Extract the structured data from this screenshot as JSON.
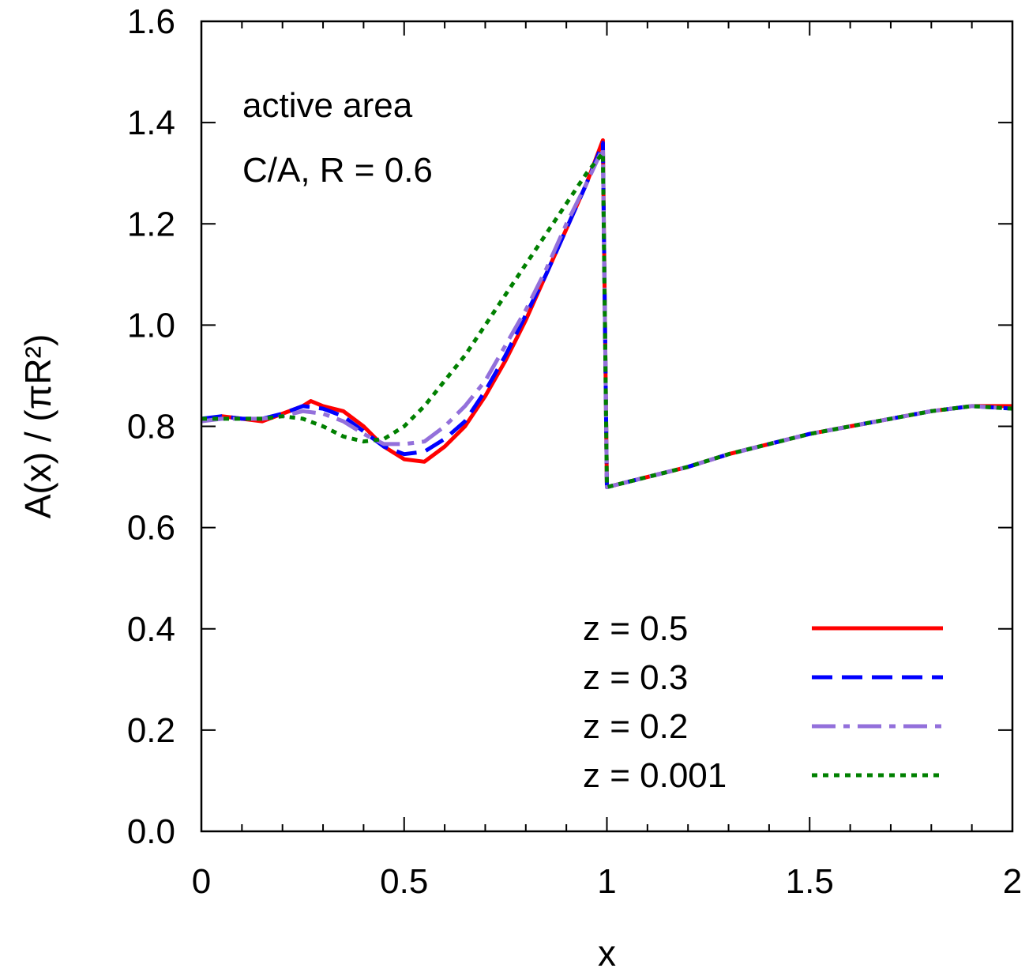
{
  "chart_data": {
    "type": "line",
    "title": "",
    "xlabel": "x",
    "ylabel": "A(x) / (πR²)",
    "xlim": [
      0,
      2
    ],
    "ylim": [
      0.0,
      1.6
    ],
    "x_ticks": [
      "0",
      "0.5",
      "1",
      "1.5",
      "2"
    ],
    "y_ticks": [
      "0.0",
      "0.2",
      "0.4",
      "0.6",
      "0.8",
      "1.0",
      "1.2",
      "1.4",
      "1.6"
    ],
    "grid": false,
    "legend_position": "bottom-right",
    "annotations": [
      "active area",
      "C/A, R = 0.6"
    ],
    "series": [
      {
        "name": "z = 0.5",
        "color": "#ff0000",
        "dash": "solid",
        "points": [
          [
            0,
            0.81
          ],
          [
            0.05,
            0.82
          ],
          [
            0.1,
            0.815
          ],
          [
            0.15,
            0.81
          ],
          [
            0.2,
            0.825
          ],
          [
            0.25,
            0.84
          ],
          [
            0.27,
            0.85
          ],
          [
            0.3,
            0.84
          ],
          [
            0.35,
            0.83
          ],
          [
            0.4,
            0.8
          ],
          [
            0.45,
            0.76
          ],
          [
            0.5,
            0.735
          ],
          [
            0.55,
            0.73
          ],
          [
            0.6,
            0.76
          ],
          [
            0.65,
            0.8
          ],
          [
            0.7,
            0.86
          ],
          [
            0.75,
            0.93
          ],
          [
            0.8,
            1.01
          ],
          [
            0.85,
            1.1
          ],
          [
            0.9,
            1.19
          ],
          [
            0.95,
            1.28
          ],
          [
            0.99,
            1.365
          ],
          [
            1.0,
            0.68
          ],
          [
            1.1,
            0.7
          ],
          [
            1.2,
            0.72
          ],
          [
            1.3,
            0.745
          ],
          [
            1.4,
            0.765
          ],
          [
            1.5,
            0.785
          ],
          [
            1.6,
            0.8
          ],
          [
            1.7,
            0.815
          ],
          [
            1.8,
            0.83
          ],
          [
            1.9,
            0.84
          ],
          [
            2.0,
            0.84
          ]
        ]
      },
      {
        "name": "z = 0.3",
        "color": "#0000ff",
        "dash": "dashed",
        "points": [
          [
            0,
            0.815
          ],
          [
            0.05,
            0.82
          ],
          [
            0.1,
            0.815
          ],
          [
            0.15,
            0.815
          ],
          [
            0.2,
            0.825
          ],
          [
            0.25,
            0.84
          ],
          [
            0.3,
            0.835
          ],
          [
            0.35,
            0.82
          ],
          [
            0.4,
            0.79
          ],
          [
            0.45,
            0.76
          ],
          [
            0.5,
            0.745
          ],
          [
            0.55,
            0.75
          ],
          [
            0.6,
            0.775
          ],
          [
            0.65,
            0.81
          ],
          [
            0.7,
            0.87
          ],
          [
            0.75,
            0.94
          ],
          [
            0.8,
            1.02
          ],
          [
            0.85,
            1.1
          ],
          [
            0.9,
            1.19
          ],
          [
            0.95,
            1.28
          ],
          [
            0.99,
            1.36
          ],
          [
            1.0,
            0.68
          ],
          [
            1.1,
            0.7
          ],
          [
            1.2,
            0.72
          ],
          [
            1.3,
            0.745
          ],
          [
            1.4,
            0.765
          ],
          [
            1.5,
            0.785
          ],
          [
            1.6,
            0.8
          ],
          [
            1.7,
            0.815
          ],
          [
            1.8,
            0.83
          ],
          [
            1.9,
            0.84
          ],
          [
            2.0,
            0.835
          ]
        ]
      },
      {
        "name": "z = 0.2",
        "color": "#9370db",
        "dash": "dashdot",
        "points": [
          [
            0,
            0.81
          ],
          [
            0.05,
            0.815
          ],
          [
            0.1,
            0.815
          ],
          [
            0.15,
            0.815
          ],
          [
            0.2,
            0.82
          ],
          [
            0.25,
            0.83
          ],
          [
            0.3,
            0.825
          ],
          [
            0.35,
            0.81
          ],
          [
            0.4,
            0.785
          ],
          [
            0.45,
            0.765
          ],
          [
            0.5,
            0.765
          ],
          [
            0.55,
            0.77
          ],
          [
            0.6,
            0.8
          ],
          [
            0.65,
            0.84
          ],
          [
            0.7,
            0.89
          ],
          [
            0.75,
            0.96
          ],
          [
            0.8,
            1.03
          ],
          [
            0.85,
            1.11
          ],
          [
            0.9,
            1.2
          ],
          [
            0.95,
            1.28
          ],
          [
            0.99,
            1.35
          ],
          [
            1.0,
            0.68
          ],
          [
            1.1,
            0.7
          ],
          [
            1.2,
            0.72
          ],
          [
            1.3,
            0.745
          ],
          [
            1.4,
            0.765
          ],
          [
            1.5,
            0.785
          ],
          [
            1.6,
            0.8
          ],
          [
            1.7,
            0.815
          ],
          [
            1.8,
            0.83
          ],
          [
            1.9,
            0.84
          ],
          [
            2.0,
            0.835
          ]
        ]
      },
      {
        "name": "z = 0.001",
        "color": "#008000",
        "dash": "dotted",
        "points": [
          [
            0,
            0.815
          ],
          [
            0.05,
            0.815
          ],
          [
            0.1,
            0.815
          ],
          [
            0.15,
            0.815
          ],
          [
            0.2,
            0.82
          ],
          [
            0.25,
            0.815
          ],
          [
            0.3,
            0.8
          ],
          [
            0.35,
            0.78
          ],
          [
            0.4,
            0.77
          ],
          [
            0.45,
            0.775
          ],
          [
            0.5,
            0.8
          ],
          [
            0.55,
            0.84
          ],
          [
            0.6,
            0.89
          ],
          [
            0.65,
            0.94
          ],
          [
            0.7,
            1.0
          ],
          [
            0.75,
            1.06
          ],
          [
            0.8,
            1.12
          ],
          [
            0.85,
            1.18
          ],
          [
            0.9,
            1.24
          ],
          [
            0.95,
            1.3
          ],
          [
            0.99,
            1.34
          ],
          [
            1.0,
            0.68
          ],
          [
            1.1,
            0.7
          ],
          [
            1.2,
            0.72
          ],
          [
            1.3,
            0.745
          ],
          [
            1.4,
            0.765
          ],
          [
            1.5,
            0.785
          ],
          [
            1.6,
            0.8
          ],
          [
            1.7,
            0.815
          ],
          [
            1.8,
            0.83
          ],
          [
            1.9,
            0.84
          ],
          [
            2.0,
            0.835
          ]
        ]
      }
    ]
  }
}
